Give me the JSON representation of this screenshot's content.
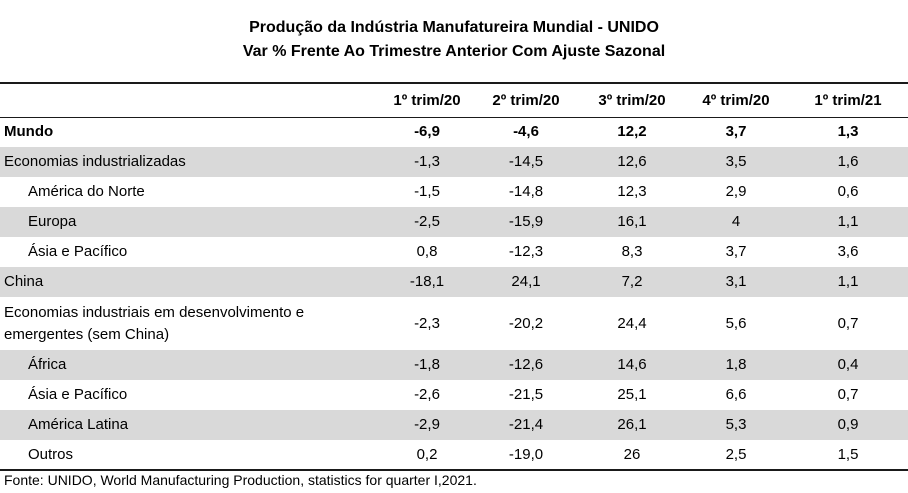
{
  "title": {
    "line1": "Produção da Indústria Manufatureira Mundial - UNIDO",
    "line2": "Var % Frente Ao Trimestre Anterior Com Ajuste Sazonal"
  },
  "table": {
    "headers": [
      "",
      "1º trim/20",
      "2º trim/20",
      "3º trim/20",
      "4º trim/20",
      "1º trim/21"
    ],
    "rows": [
      {
        "label": "Mundo",
        "values": [
          "-6,9",
          "-4,6",
          "12,2",
          "3,7",
          "1,3"
        ]
      },
      {
        "label": "Economias industrializadas",
        "values": [
          "-1,3",
          "-14,5",
          "12,6",
          "3,5",
          "1,6"
        ]
      },
      {
        "label": "América do Norte",
        "values": [
          "-1,5",
          "-14,8",
          "12,3",
          "2,9",
          "0,6"
        ]
      },
      {
        "label": "Europa",
        "values": [
          "-2,5",
          "-15,9",
          "16,1",
          "4",
          "1,1"
        ]
      },
      {
        "label": "Ásia e Pacífico",
        "values": [
          "0,8",
          "-12,3",
          "8,3",
          "3,7",
          "3,6"
        ]
      },
      {
        "label": "China",
        "values": [
          "-18,1",
          "24,1",
          "7,2",
          "3,1",
          "1,1"
        ]
      },
      {
        "label": "Economias industriais em desenvolvimento e emergentes (sem China)",
        "values": [
          "-2,3",
          "-20,2",
          "24,4",
          "5,6",
          "0,7"
        ]
      },
      {
        "label": "África",
        "values": [
          "-1,8",
          "-12,6",
          "14,6",
          "1,8",
          "0,4"
        ]
      },
      {
        "label": "Ásia e Pacífico",
        "values": [
          "-2,6",
          "-21,5",
          "25,1",
          "6,6",
          "0,7"
        ]
      },
      {
        "label": "América Latina",
        "values": [
          "-2,9",
          "-21,4",
          "26,1",
          "5,3",
          "0,9"
        ]
      },
      {
        "label": "Outros",
        "values": [
          "0,2",
          "-19,0",
          "26",
          "2,5",
          "1,5"
        ]
      }
    ]
  },
  "footnote": "Fonte: UNIDO, World Manufacturing Production, statistics for quarter I,2021."
}
